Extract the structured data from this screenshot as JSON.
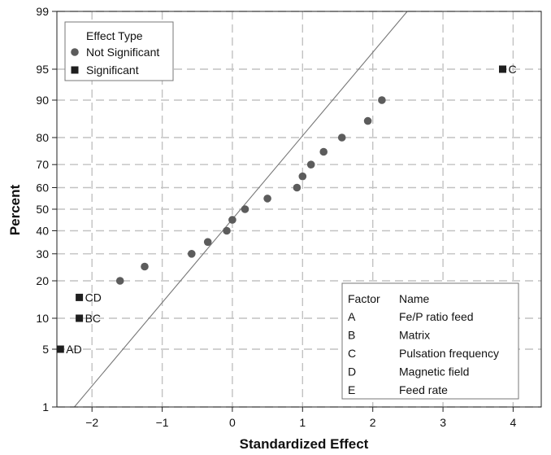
{
  "chart_data": {
    "type": "scatter",
    "subtype": "normal-probability-plot",
    "xlabel": "Standardized Effect",
    "ylabel": "Percent",
    "xlim": [
      -2.5,
      4.4
    ],
    "ylim": [
      1,
      99
    ],
    "y_scale": "normal-probability",
    "x_ticks": [
      -2,
      -1,
      0,
      1,
      2,
      3,
      4
    ],
    "y_ticks": [
      1,
      5,
      10,
      20,
      30,
      40,
      50,
      60,
      70,
      80,
      90,
      95,
      99
    ],
    "grid": true,
    "reference_line": {
      "type": "line",
      "mean": 0.12,
      "sd": 1.02
    },
    "legend": {
      "title": "Effect Type",
      "position": "top-left",
      "items": [
        {
          "label": "Not Significant",
          "marker": "circle",
          "color": "#5c5c5c"
        },
        {
          "label": "Significant",
          "marker": "square",
          "color": "#1e1e1e"
        }
      ]
    },
    "series": [
      {
        "name": "Not Significant",
        "points": [
          {
            "x": -1.6,
            "y": 20
          },
          {
            "x": -1.25,
            "y": 25
          },
          {
            "x": -0.58,
            "y": 30
          },
          {
            "x": -0.35,
            "y": 35
          },
          {
            "x": -0.08,
            "y": 40
          },
          {
            "x": 0.0,
            "y": 45
          },
          {
            "x": 0.18,
            "y": 50
          },
          {
            "x": 0.5,
            "y": 55
          },
          {
            "x": 0.92,
            "y": 60
          },
          {
            "x": 1.0,
            "y": 65
          },
          {
            "x": 1.12,
            "y": 70
          },
          {
            "x": 1.3,
            "y": 75
          },
          {
            "x": 1.56,
            "y": 80
          },
          {
            "x": 1.93,
            "y": 85
          },
          {
            "x": 2.13,
            "y": 90
          }
        ]
      },
      {
        "name": "Significant",
        "points": [
          {
            "x": -2.45,
            "y": 5,
            "label": "AD"
          },
          {
            "x": -2.18,
            "y": 10,
            "label": "BC"
          },
          {
            "x": -2.18,
            "y": 15,
            "label": "CD"
          },
          {
            "x": 3.85,
            "y": 95,
            "label": "C"
          }
        ]
      }
    ],
    "factor_table": {
      "position": "bottom-right",
      "headers": [
        "Factor",
        "Name"
      ],
      "rows": [
        [
          "A",
          "Fe/P ratio feed"
        ],
        [
          "B",
          "Matrix"
        ],
        [
          "C",
          "Pulsation frequency"
        ],
        [
          "D",
          "Magnetic field"
        ],
        [
          "E",
          "Feed rate"
        ]
      ]
    },
    "colors": {
      "grid": "#c2c2c2",
      "axis": "#222222",
      "reference_line": "#777777"
    }
  }
}
